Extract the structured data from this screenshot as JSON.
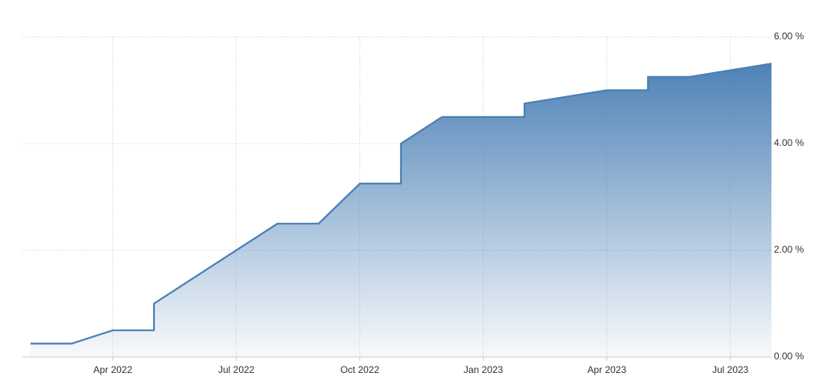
{
  "chart_data": {
    "type": "area",
    "x": [
      "2022-02",
      "2022-03",
      "2022-04",
      "2022-05",
      "2022-05",
      "2022-08",
      "2022-09",
      "2022-10",
      "2022-11",
      "2022-11",
      "2022-12",
      "2023-02",
      "2023-02",
      "2023-04",
      "2023-05",
      "2023-05",
      "2023-06",
      "2023-08"
    ],
    "values": [
      0.25,
      0.25,
      0.5,
      0.5,
      1.0,
      2.5,
      2.5,
      3.25,
      3.25,
      4.0,
      4.5,
      4.5,
      4.75,
      5.0,
      5.0,
      5.25,
      5.25,
      5.5
    ],
    "color": "#4a7fb5",
    "xlim": [
      "2022-02",
      "2023-08"
    ],
    "xticks": [
      {
        "value": "2022-04",
        "label": "Apr 2022"
      },
      {
        "value": "2022-07",
        "label": "Jul 2022"
      },
      {
        "value": "2022-10",
        "label": "Oct 2022"
      },
      {
        "value": "2023-01",
        "label": "Jan 2023"
      },
      {
        "value": "2023-04",
        "label": "Apr 2023"
      },
      {
        "value": "2023-07",
        "label": "Jul 2023"
      }
    ],
    "ylim": [
      0,
      6
    ],
    "yticks": [
      {
        "value": 0,
        "label": "0.00 %"
      },
      {
        "value": 2,
        "label": "2.00 %"
      },
      {
        "value": 4,
        "label": "4.00 %"
      },
      {
        "value": 6,
        "label": "6.00 %"
      }
    ],
    "grid": true
  }
}
